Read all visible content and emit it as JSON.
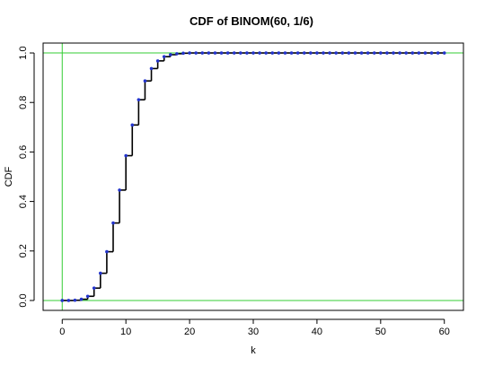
{
  "chart_data": {
    "type": "line",
    "title": "CDF of BINOM(60, 1/6)",
    "xlabel": "k",
    "ylabel": "CDF",
    "xlim": [
      -3,
      63
    ],
    "ylim": [
      -0.04,
      1.04
    ],
    "x_ticks": [
      0,
      10,
      20,
      30,
      40,
      50,
      60
    ],
    "x_tick_labels": [
      "0",
      "10",
      "20",
      "30",
      "40",
      "50",
      "60"
    ],
    "y_ticks": [
      0.0,
      0.2,
      0.4,
      0.6,
      0.8,
      1.0
    ],
    "y_tick_labels": [
      "0.0",
      "0.2",
      "0.4",
      "0.6",
      "0.8",
      "1.0"
    ],
    "grid": false,
    "reference_lines": {
      "horizontal": [
        0,
        1
      ],
      "vertical": [
        0
      ],
      "color": "#33cc33"
    },
    "step_color": "#000000",
    "point_color": "#2233cc",
    "series": [
      {
        "x": [
          0,
          1,
          2,
          3,
          4,
          5,
          6,
          7,
          8,
          9,
          10,
          11,
          12,
          13,
          14,
          15,
          16,
          17,
          18,
          19,
          20,
          21,
          22,
          23,
          24,
          25,
          26,
          27,
          28,
          29,
          30,
          31,
          32,
          33,
          34,
          35,
          36,
          37,
          38,
          39,
          40,
          41,
          42,
          43,
          44,
          45,
          46,
          47,
          48,
          49,
          50,
          51,
          52,
          53,
          54,
          55,
          56,
          57,
          58,
          59,
          60
        ],
        "values": [
          0.0,
          0.0,
          0.001,
          0.005,
          0.017,
          0.05,
          0.11,
          0.197,
          0.313,
          0.446,
          0.585,
          0.709,
          0.811,
          0.887,
          0.937,
          0.968,
          0.985,
          0.993,
          0.997,
          0.999,
          1.0,
          1.0,
          1.0,
          1.0,
          1.0,
          1.0,
          1.0,
          1.0,
          1.0,
          1.0,
          1.0,
          1.0,
          1.0,
          1.0,
          1.0,
          1.0,
          1.0,
          1.0,
          1.0,
          1.0,
          1.0,
          1.0,
          1.0,
          1.0,
          1.0,
          1.0,
          1.0,
          1.0,
          1.0,
          1.0,
          1.0,
          1.0,
          1.0,
          1.0,
          1.0,
          1.0,
          1.0,
          1.0,
          1.0,
          1.0,
          1.0
        ]
      }
    ]
  }
}
